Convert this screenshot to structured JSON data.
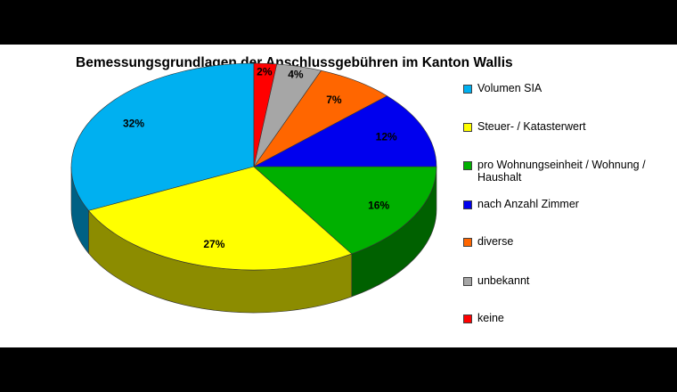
{
  "chart_data": {
    "type": "pie",
    "title": "Bemessungsgrundlagen der Anschlussgebühren im Kanton Wallis",
    "slices": [
      {
        "label": "Volumen SIA",
        "value": 32,
        "value_label": "32%",
        "color": "#00b0f0"
      },
      {
        "label": "Steuer- / Katasterwert",
        "value": 27,
        "value_label": "27%",
        "color": "#ffff00"
      },
      {
        "label": "pro Wohnungseinheit / Wohnung / Haushalt",
        "value": 16,
        "value_label": "16%",
        "color": "#00b000"
      },
      {
        "label": "nach Anzahl Zimmer",
        "value": 12,
        "value_label": "12%",
        "color": "#0000ee"
      },
      {
        "label": "diverse",
        "value": 7,
        "value_label": "7%",
        "color": "#ff6600"
      },
      {
        "label": "unbekannt",
        "value": 4,
        "value_label": "4%",
        "color": "#a6a6a6"
      },
      {
        "label": "keine",
        "value": 2,
        "value_label": "2%",
        "color": "#ff0000"
      }
    ],
    "legend_placement": "right"
  }
}
